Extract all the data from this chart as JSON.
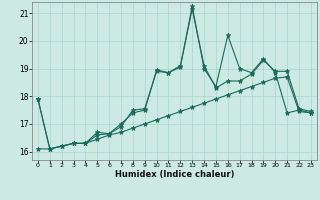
{
  "xlabel": "Humidex (Indice chaleur)",
  "bg_color": "#cce9e4",
  "line_color": "#1a6b5a",
  "grid_color": "#aad6cc",
  "xlim": [
    -0.5,
    23.5
  ],
  "ylim": [
    15.7,
    21.4
  ],
  "x_ticks": [
    0,
    1,
    2,
    3,
    4,
    5,
    6,
    7,
    8,
    9,
    10,
    11,
    12,
    13,
    14,
    15,
    16,
    17,
    18,
    19,
    20,
    21,
    22,
    23
  ],
  "y_ticks": [
    16,
    17,
    18,
    19,
    20,
    21
  ],
  "line1_x": [
    0,
    1,
    2,
    3,
    4,
    5,
    6,
    7,
    8,
    9,
    10,
    11,
    12,
    13,
    14,
    15,
    16,
    17,
    18,
    19,
    20,
    21,
    22,
    23
  ],
  "line1_y": [
    17.9,
    16.1,
    16.2,
    16.3,
    16.3,
    16.6,
    16.65,
    16.9,
    17.5,
    17.55,
    18.9,
    18.85,
    19.1,
    21.15,
    19.1,
    18.3,
    18.55,
    18.55,
    18.8,
    19.3,
    18.9,
    18.9,
    17.55,
    17.45
  ],
  "line2_x": [
    0,
    1,
    2,
    3,
    4,
    5,
    6,
    7,
    8,
    9,
    10,
    11,
    12,
    13,
    14,
    15,
    16,
    17,
    18,
    19,
    20,
    21,
    22,
    23
  ],
  "line2_y": [
    17.9,
    16.1,
    16.2,
    16.3,
    16.3,
    16.7,
    16.65,
    17.0,
    17.4,
    17.5,
    18.95,
    18.85,
    19.05,
    21.25,
    19.0,
    18.35,
    20.2,
    19.0,
    18.85,
    19.35,
    18.85,
    17.4,
    17.5,
    17.4
  ],
  "line3_x": [
    0,
    1,
    2,
    3,
    4,
    5,
    6,
    7,
    8,
    9,
    10,
    11,
    12,
    13,
    14,
    15,
    16,
    17,
    18,
    19,
    20,
    21,
    22,
    23
  ],
  "line3_y": [
    16.1,
    16.1,
    16.2,
    16.3,
    16.3,
    16.45,
    16.6,
    16.7,
    16.85,
    17.0,
    17.15,
    17.3,
    17.45,
    17.6,
    17.75,
    17.9,
    18.05,
    18.2,
    18.35,
    18.5,
    18.65,
    18.7,
    17.45,
    17.4
  ]
}
